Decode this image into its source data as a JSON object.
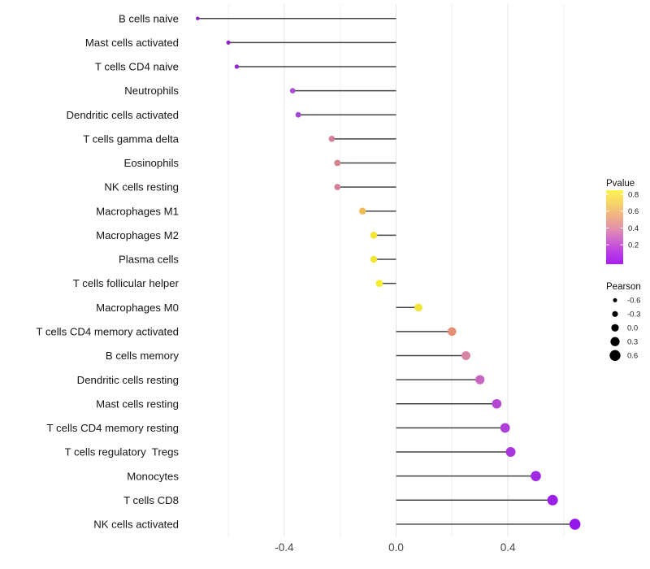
{
  "chart_data": {
    "type": "scatter",
    "variant": "lollipop",
    "orientation": "horizontal",
    "title": "",
    "xlabel": "",
    "ylabel": "",
    "xlim": [
      -0.75,
      0.72
    ],
    "grid": "vertical-only",
    "x_ticks": [
      {
        "value": -0.4,
        "label": "-0.4"
      },
      {
        "value": 0.0,
        "label": "0.0"
      },
      {
        "value": 0.4,
        "label": "0.4"
      }
    ],
    "x_grid_minor": [
      -0.6,
      -0.2,
      0.2,
      0.6
    ],
    "points": [
      {
        "label": "B cells naive",
        "pearson": -0.71,
        "pvalue": 0.0,
        "color": "#8a1cc9"
      },
      {
        "label": "Mast cells activated",
        "pearson": -0.6,
        "pvalue": 0.01,
        "color": "#9123cd"
      },
      {
        "label": "T cells CD4 naive",
        "pearson": -0.57,
        "pvalue": 0.02,
        "color": "#9527d1"
      },
      {
        "label": "Neutrophils",
        "pearson": -0.37,
        "pvalue": 0.1,
        "color": "#a94fd4"
      },
      {
        "label": "Dendritic cells activated",
        "pearson": -0.35,
        "pvalue": 0.11,
        "color": "#a748d2"
      },
      {
        "label": "T cells gamma delta",
        "pearson": -0.23,
        "pvalue": 0.35,
        "color": "#d2809c"
      },
      {
        "label": "Eosinophils",
        "pearson": -0.21,
        "pvalue": 0.36,
        "color": "#d48290"
      },
      {
        "label": "NK cells resting",
        "pearson": -0.21,
        "pvalue": 0.36,
        "color": "#d28096"
      },
      {
        "label": "Macrophages M1",
        "pearson": -0.12,
        "pvalue": 0.6,
        "color": "#f0bc55"
      },
      {
        "label": "Macrophages M2",
        "pearson": -0.08,
        "pvalue": 0.72,
        "color": "#f5e33a"
      },
      {
        "label": "Plasma cells",
        "pearson": -0.08,
        "pvalue": 0.72,
        "color": "#f4e436"
      },
      {
        "label": "T cells follicular helper",
        "pearson": -0.06,
        "pvalue": 0.78,
        "color": "#f8ee2e"
      },
      {
        "label": "Macrophages M0",
        "pearson": 0.08,
        "pvalue": 0.7,
        "color": "#f2e438"
      },
      {
        "label": "T cells CD4 memory activated",
        "pearson": 0.2,
        "pvalue": 0.45,
        "color": "#e39076"
      },
      {
        "label": "B cells memory",
        "pearson": 0.25,
        "pvalue": 0.33,
        "color": "#d884a4"
      },
      {
        "label": "Dendritic cells resting",
        "pearson": 0.3,
        "pvalue": 0.22,
        "color": "#c765c0"
      },
      {
        "label": "Mast cells resting",
        "pearson": 0.36,
        "pvalue": 0.13,
        "color": "#b348d2"
      },
      {
        "label": "T cells CD4 memory resting",
        "pearson": 0.39,
        "pvalue": 0.1,
        "color": "#ad3fd8"
      },
      {
        "label": "T cells regulatory  Tregs",
        "pearson": 0.41,
        "pvalue": 0.08,
        "color": "#aa36dd"
      },
      {
        "label": "Monocytes",
        "pearson": 0.5,
        "pvalue": 0.04,
        "color": "#9f2ae2"
      },
      {
        "label": "T cells CD8",
        "pearson": 0.56,
        "pvalue": 0.02,
        "color": "#9a1fe7"
      },
      {
        "label": "NK cells activated",
        "pearson": 0.64,
        "pvalue": 0.01,
        "color": "#9316ec"
      }
    ],
    "legends": {
      "pvalue": {
        "title": "Pvalue",
        "ticks": [
          {
            "value": 0.8,
            "label": "0.8"
          },
          {
            "value": 0.6,
            "label": "0.6"
          },
          {
            "value": 0.4,
            "label": "0.4"
          },
          {
            "value": 0.2,
            "label": "0.2"
          }
        ],
        "gradient": [
          {
            "offset": "0%",
            "color": "#fdf351"
          },
          {
            "offset": "18%",
            "color": "#f7d469"
          },
          {
            "offset": "36%",
            "color": "#efaf88"
          },
          {
            "offset": "50%",
            "color": "#e595a8"
          },
          {
            "offset": "64%",
            "color": "#d472c8"
          },
          {
            "offset": "82%",
            "color": "#bc41e2"
          },
          {
            "offset": "100%",
            "color": "#a81ef0"
          }
        ]
      },
      "pearson": {
        "title": "Pearson",
        "entries": [
          {
            "value": -0.6,
            "label": "-0.6"
          },
          {
            "value": -0.3,
            "label": "-0.3"
          },
          {
            "value": 0.0,
            "label": "0.0"
          },
          {
            "value": 0.3,
            "label": "0.3"
          },
          {
            "value": 0.6,
            "label": "0.6"
          }
        ],
        "dot_color": "#000000"
      }
    },
    "colors": {
      "stem": "#434343",
      "grid_major": "#e4e4e4",
      "grid_minor": "#f0f0f0",
      "background": "#ffffff"
    }
  }
}
